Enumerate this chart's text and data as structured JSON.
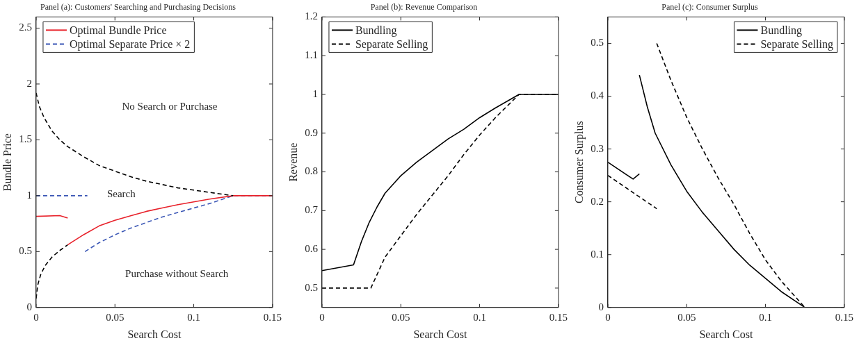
{
  "chart_data": [
    {
      "type": "line",
      "title": "Panel (a): Customers' Searching and Purchasing Decisions",
      "xlabel": "Search Cost",
      "ylabel": "Bundle Price",
      "xlim": [
        0,
        0.15
      ],
      "xticks": [
        0,
        0.05,
        0.1,
        0.15
      ],
      "ylim": [
        0,
        2.6
      ],
      "yticks": [
        0,
        0.5,
        1,
        1.5,
        2,
        2.5
      ],
      "grid": false,
      "legend": "top left",
      "marker": "none",
      "series": [
        {
          "color": "#000000",
          "line_style": "dashed",
          "x": [
            0,
            0.002,
            0.005,
            0.01,
            0.015,
            0.02,
            0.03,
            0.04,
            0.05,
            0.06,
            0.07,
            0.08,
            0.09,
            0.1,
            0.11,
            0.125
          ],
          "values": [
            1.92,
            1.8,
            1.7,
            1.58,
            1.5,
            1.44,
            1.35,
            1.27,
            1.22,
            1.17,
            1.13,
            1.1,
            1.07,
            1.05,
            1.03,
            1
          ]
        },
        {
          "name": "Optimal Bundle Price",
          "color": "#e8212a",
          "line_style": "solid",
          "x": [
            0,
            0.015,
            0.02
          ],
          "values": [
            0.815,
            0.822,
            0.8
          ]
        },
        {
          "color": "#e8212a",
          "line_style": "solid",
          "x": [
            0.02,
            0.03,
            0.04,
            0.05,
            0.06,
            0.07,
            0.08,
            0.09,
            0.1,
            0.11,
            0.125,
            0.15
          ],
          "values": [
            0.56,
            0.65,
            0.73,
            0.78,
            0.82,
            0.86,
            0.89,
            0.92,
            0.945,
            0.97,
            1,
            1
          ]
        },
        {
          "name": "Optimal Separate Price × 2",
          "color": "#3a56b5",
          "line_style": "dashed",
          "x": [
            0,
            0.0325
          ],
          "values": [
            1,
            1
          ]
        },
        {
          "color": "#3a56b5",
          "line_style": "dashed",
          "x": [
            0.031,
            0.04,
            0.05,
            0.06,
            0.07,
            0.08,
            0.09,
            0.1,
            0.11,
            0.125,
            0.15
          ],
          "values": [
            0.5,
            0.58,
            0.65,
            0.71,
            0.76,
            0.81,
            0.85,
            0.89,
            0.93,
            1,
            1
          ]
        },
        {
          "color": "#000000",
          "line_style": "dashed",
          "x": [
            0,
            0.001,
            0.003,
            0.006,
            0.01,
            0.015,
            0.02
          ],
          "values": [
            0.08,
            0.2,
            0.3,
            0.38,
            0.45,
            0.51,
            0.56
          ]
        }
      ],
      "annotations": [
        "No Search or Purchase",
        "Search",
        "Purchase without Search"
      ]
    },
    {
      "type": "line",
      "title": "Panel (b): Revenue Comparison",
      "xlabel": "Search Cost",
      "ylabel": "Revenue",
      "xlim": [
        0,
        0.15
      ],
      "xticks": [
        0,
        0.05,
        0.1,
        0.15
      ],
      "ylim": [
        0.45,
        1.2
      ],
      "yticks": [
        0.5,
        0.6,
        0.7,
        0.8,
        0.9,
        1,
        1.1,
        1.2
      ],
      "grid": false,
      "legend": "top left",
      "marker": "none",
      "series": [
        {
          "name": "Bundling",
          "color": "#000000",
          "line_style": "solid",
          "x": [
            0,
            0.02,
            0.025,
            0.03,
            0.035,
            0.04,
            0.05,
            0.06,
            0.07,
            0.08,
            0.09,
            0.1,
            0.11,
            0.125,
            0.15
          ],
          "values": [
            0.545,
            0.56,
            0.62,
            0.67,
            0.71,
            0.745,
            0.79,
            0.825,
            0.855,
            0.885,
            0.91,
            0.94,
            0.965,
            1,
            1
          ]
        },
        {
          "name": "Separate Selling",
          "color": "#000000",
          "line_style": "dashed",
          "x": [
            0,
            0.031,
            0.04,
            0.05,
            0.06,
            0.07,
            0.08,
            0.09,
            0.1,
            0.11,
            0.125,
            0.15
          ],
          "values": [
            0.5,
            0.5,
            0.58,
            0.635,
            0.69,
            0.74,
            0.79,
            0.845,
            0.895,
            0.94,
            1,
            1
          ]
        }
      ]
    },
    {
      "type": "line",
      "title": "Panel (c): Consumer Surplus",
      "xlabel": "Search Cost",
      "ylabel": "Consumer Surplus",
      "xlim": [
        0,
        0.15
      ],
      "xticks": [
        0,
        0.05,
        0.1,
        0.15
      ],
      "ylim": [
        0,
        0.55
      ],
      "yticks": [
        0,
        0.1,
        0.2,
        0.3,
        0.4,
        0.5
      ],
      "grid": false,
      "legend": "top right",
      "marker": "none",
      "series": [
        {
          "name": "Bundling",
          "color": "#000000",
          "line_style": "solid",
          "x": [
            0,
            0.016,
            0.02
          ],
          "values": [
            0.275,
            0.243,
            0.253
          ]
        },
        {
          "color": "#000000",
          "line_style": "solid",
          "x": [
            0.02,
            0.025,
            0.03,
            0.04,
            0.05,
            0.06,
            0.07,
            0.08,
            0.09,
            0.1,
            0.11,
            0.125,
            0.15
          ],
          "values": [
            0.44,
            0.38,
            0.33,
            0.27,
            0.22,
            0.18,
            0.145,
            0.11,
            0.08,
            0.055,
            0.03,
            0,
            0
          ]
        },
        {
          "name": "Separate Selling",
          "color": "#000000",
          "line_style": "dashed",
          "x": [
            0,
            0.031
          ],
          "values": [
            0.25,
            0.187
          ]
        },
        {
          "color": "#000000",
          "line_style": "dashed",
          "x": [
            0.031,
            0.04,
            0.05,
            0.06,
            0.07,
            0.08,
            0.09,
            0.1,
            0.11,
            0.125,
            0.15
          ],
          "values": [
            0.5,
            0.43,
            0.36,
            0.3,
            0.245,
            0.195,
            0.14,
            0.09,
            0.05,
            0,
            0
          ]
        }
      ]
    }
  ]
}
